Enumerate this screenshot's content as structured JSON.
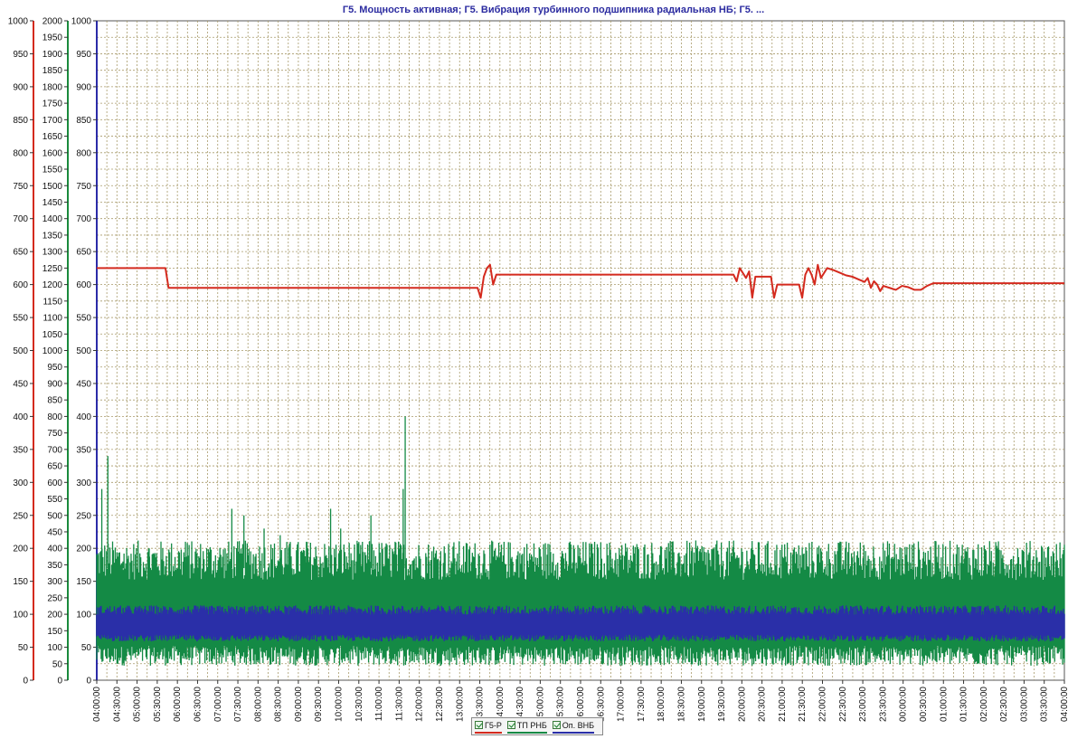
{
  "chart_data": {
    "type": "line",
    "title": "Г5. Мощность активная; Г5. Вибрация турбинного подшипника радиальная НБ; Г5. ...",
    "x_tick_labels": [
      "04:00:00",
      "04:30:00",
      "05:00:00",
      "05:30:00",
      "06:00:00",
      "06:30:00",
      "07:00:00",
      "07:30:00",
      "08:00:00",
      "08:30:00",
      "09:00:00",
      "09:30:00",
      "10:00:00",
      "10:30:00",
      "11:00:00",
      "11:30:00",
      "12:00:00",
      "12:30:00",
      "13:00:00",
      "13:30:00",
      "14:00:00",
      "14:30:00",
      "15:00:00",
      "15:30:00",
      "16:00:00",
      "16:30:00",
      "17:00:00",
      "17:30:00",
      "18:00:00",
      "18:30:00",
      "19:00:00",
      "19:30:00",
      "20:00:00",
      "20:30:00",
      "21:00:00",
      "21:30:00",
      "22:00:00",
      "22:30:00",
      "23:00:00",
      "23:30:00",
      "00:00:00",
      "00:30:00",
      "01:00:00",
      "01:30:00",
      "02:00:00",
      "02:30:00",
      "03:00:00",
      "03:30:00",
      "04:00:00"
    ],
    "axes": [
      {
        "side": "left-outer",
        "color": "#d42a1e",
        "ylim": [
          0,
          1000
        ],
        "major_step": 50,
        "minor_step": 0
      },
      {
        "side": "left-middle",
        "color": "#1a8a3c",
        "ylim": [
          0,
          2000
        ],
        "major_step": 50,
        "minor_step": 0
      },
      {
        "side": "left-inner",
        "color": "#2b2ba8",
        "ylim": [
          0,
          1000
        ],
        "major_step": 50,
        "minor_step": 0
      }
    ],
    "grid": true,
    "legend_position": "bottom-center",
    "series": [
      {
        "name": "Г5-Р",
        "color": "#d42a1e",
        "axis": 0,
        "points": [
          [
            0,
            625
          ],
          [
            1.1,
            625
          ],
          [
            1.15,
            595
          ],
          [
            6.1,
            595
          ],
          [
            6.15,
            580
          ],
          [
            6.2,
            612
          ],
          [
            6.25,
            625
          ],
          [
            6.3,
            630
          ],
          [
            6.35,
            600
          ],
          [
            6.4,
            615
          ],
          [
            10.2,
            615
          ],
          [
            10.25,
            605
          ],
          [
            10.3,
            625
          ],
          [
            10.4,
            610
          ],
          [
            10.45,
            620
          ],
          [
            10.5,
            580
          ],
          [
            10.55,
            612
          ],
          [
            10.8,
            612
          ],
          [
            10.85,
            580
          ],
          [
            10.9,
            600
          ],
          [
            11.25,
            600
          ],
          [
            11.3,
            580
          ],
          [
            11.35,
            615
          ],
          [
            11.4,
            625
          ],
          [
            11.45,
            615
          ],
          [
            11.5,
            600
          ],
          [
            11.55,
            630
          ],
          [
            11.6,
            610
          ],
          [
            11.7,
            625
          ],
          [
            11.8,
            622
          ],
          [
            11.9,
            618
          ],
          [
            12.0,
            614
          ],
          [
            12.1,
            612
          ],
          [
            12.2,
            608
          ],
          [
            12.3,
            604
          ],
          [
            12.35,
            610
          ],
          [
            12.4,
            595
          ],
          [
            12.45,
            605
          ],
          [
            12.5,
            600
          ],
          [
            12.55,
            590
          ],
          [
            12.6,
            598
          ],
          [
            12.7,
            595
          ],
          [
            12.8,
            592
          ],
          [
            12.9,
            598
          ],
          [
            13.0,
            596
          ],
          [
            13.1,
            592
          ],
          [
            13.2,
            592
          ],
          [
            13.3,
            598
          ],
          [
            13.4,
            602
          ],
          [
            15.3,
            602
          ],
          [
            15.5,
            602
          ]
        ]
      },
      {
        "name": "ТП РНБ",
        "color": "#148a45",
        "axis": 1,
        "band": {
          "low": 80,
          "high": 340,
          "low_spike": 40
        },
        "spikes": [
          [
            0.25,
            580
          ],
          [
            0.55,
            680
          ],
          [
            1.3,
            360
          ],
          [
            2.6,
            400
          ],
          [
            4.4,
            420
          ],
          [
            6.7,
            520
          ],
          [
            7.3,
            500
          ],
          [
            8.3,
            460
          ],
          [
            9.1,
            440
          ],
          [
            10.4,
            420
          ],
          [
            11.6,
            520
          ],
          [
            12.1,
            460
          ],
          [
            13.6,
            500
          ],
          [
            14.8,
            420
          ],
          [
            15.2,
            580
          ],
          [
            15.3,
            800
          ]
        ]
      },
      {
        "name": "Оп. ВНБ",
        "color": "#2a2fa8",
        "axis": 2,
        "band": {
          "low": 65,
          "high": 105
        }
      }
    ]
  },
  "legend": {
    "items": [
      {
        "label": "Г5-Р",
        "color": "#d42a1e"
      },
      {
        "label": "ТП РНБ",
        "color": "#148a45"
      },
      {
        "label": "Оп. ВНБ",
        "color": "#2a2fa8"
      }
    ]
  }
}
